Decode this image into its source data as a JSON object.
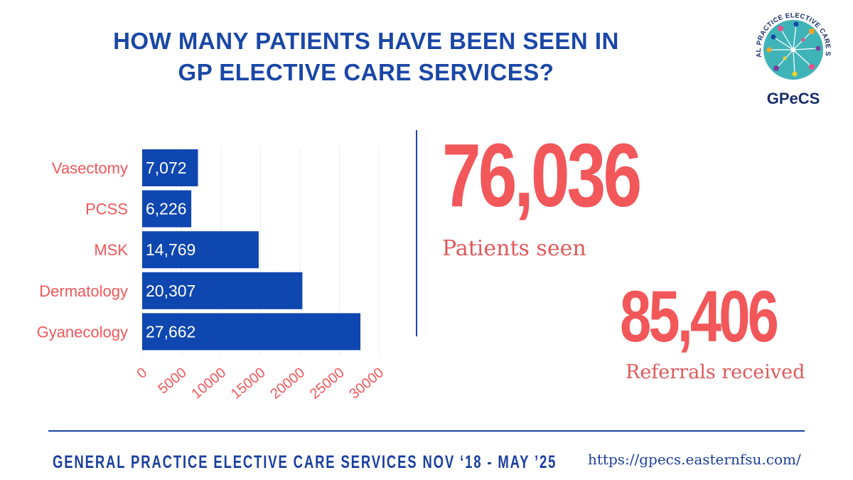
{
  "header": {
    "title_line1": "HOW MANY PATIENTS HAVE BEEN SEEN IN",
    "title_line2": "GP ELECTIVE CARE SERVICES?"
  },
  "logo": {
    "ring_text": "GENERAL PRACTICE ELECTIVE CARE SERVICE",
    "wordmark": "GPeCS"
  },
  "stats": {
    "patients_value": "76,036",
    "patients_label": "Patients seen",
    "referrals_value": "85,406",
    "referrals_label": "Referrals received"
  },
  "footer": {
    "left_text": "GENERAL PRACTICE ELECTIVE CARE SERVICES NOV ‘18 - MAY ’25",
    "url": "https://gpecs.easternfsu.com/"
  },
  "colors": {
    "navy": "#1a47a6",
    "bar": "#0f47b0",
    "coral": "#f2575a",
    "teal": "#3fb4b8"
  },
  "chart_data": {
    "type": "bar",
    "orientation": "horizontal",
    "categories": [
      "Vasectomy",
      "PCSS",
      "MSK",
      "Dermatology",
      "Gyanecology"
    ],
    "values": [
      7072,
      6226,
      14769,
      20307,
      27662
    ],
    "value_labels": [
      "7,072",
      "6,226",
      "14,769",
      "20,307",
      "27,662"
    ],
    "xticks": [
      0,
      5000,
      10000,
      15000,
      20000,
      25000,
      30000
    ],
    "xtick_labels": [
      "0",
      "5000",
      "10000",
      "15000",
      "20000",
      "25000",
      "30000"
    ],
    "xlim": [
      0,
      30000
    ],
    "grid": true,
    "title": "",
    "xlabel": "",
    "ylabel": ""
  }
}
